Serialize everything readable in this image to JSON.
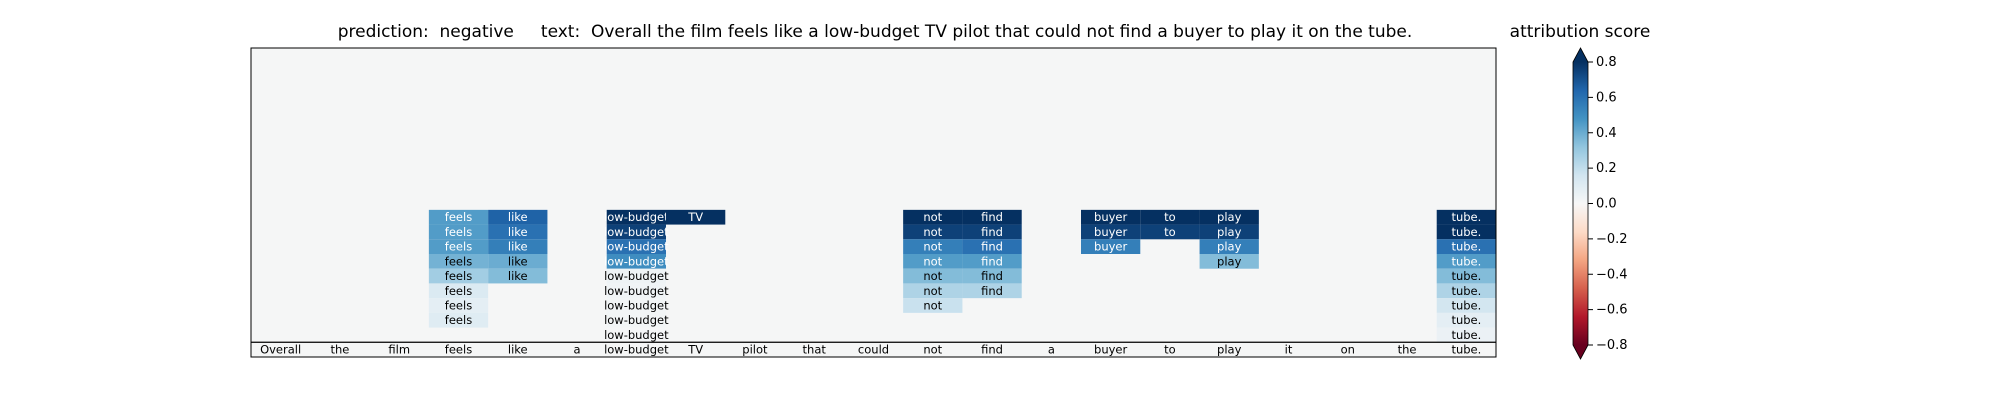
{
  "chart_data": {
    "type": "heatmap",
    "title": "prediction:  negative     text:  Overall the film feels like a low-budget TV pilot that could not find a buyer to play it on the tube.",
    "tokens": [
      "Overall",
      "the",
      "film",
      "feels",
      "like",
      "a",
      "low-budget",
      "TV",
      "pilot",
      "that",
      "could",
      "not",
      "find",
      "a",
      "buyer",
      "to",
      "play",
      "it",
      "on",
      "the",
      "tube."
    ],
    "cells_note": "rows listed top (level 20) to bottom (level 1); each column: token index -> list of scores from the top non-empty row downward",
    "columns": [
      {
        "token_index": 3,
        "top_level": 9,
        "scores": [
          0.45,
          0.45,
          0.45,
          0.38,
          0.28,
          0.12,
          0.08,
          0.1
        ]
      },
      {
        "token_index": 4,
        "top_level": 9,
        "scores": [
          0.65,
          0.6,
          0.55,
          0.4,
          0.35
        ]
      },
      {
        "token_index": 6,
        "top_level": 9,
        "scores": [
          0.85,
          0.75,
          0.6,
          0.5,
          0.04,
          0.03,
          0.02,
          0.02,
          0.01
        ]
      },
      {
        "token_index": 7,
        "top_level": 9,
        "scores": [
          0.9
        ]
      },
      {
        "token_index": 11,
        "top_level": 9,
        "scores": [
          0.85,
          0.75,
          0.55,
          0.45,
          0.35,
          0.25,
          0.18
        ]
      },
      {
        "token_index": 12,
        "top_level": 9,
        "scores": [
          0.85,
          0.75,
          0.6,
          0.45,
          0.35,
          0.25
        ]
      },
      {
        "token_index": 14,
        "top_level": 9,
        "scores": [
          0.85,
          0.75,
          0.55
        ]
      },
      {
        "token_index": 15,
        "top_level": 9,
        "scores": [
          0.85,
          0.75
        ]
      },
      {
        "token_index": 16,
        "top_level": 9,
        "scores": [
          0.85,
          0.75,
          0.55,
          0.35
        ]
      },
      {
        "token_index": 20,
        "top_level": 9,
        "scores": [
          0.9,
          0.8,
          0.6,
          0.45,
          0.35,
          0.25,
          0.15,
          0.08,
          0.05
        ]
      }
    ],
    "colorbar": {
      "title": "attribution score",
      "colormap": "RdBu",
      "range": [
        -0.8,
        0.8
      ],
      "ticks": [
        "0.8",
        "0.6",
        "0.4",
        "0.2",
        "0.0",
        "−0.2",
        "−0.4",
        "−0.6",
        "−0.8"
      ]
    },
    "grid": false,
    "legend": "colorbar right"
  }
}
